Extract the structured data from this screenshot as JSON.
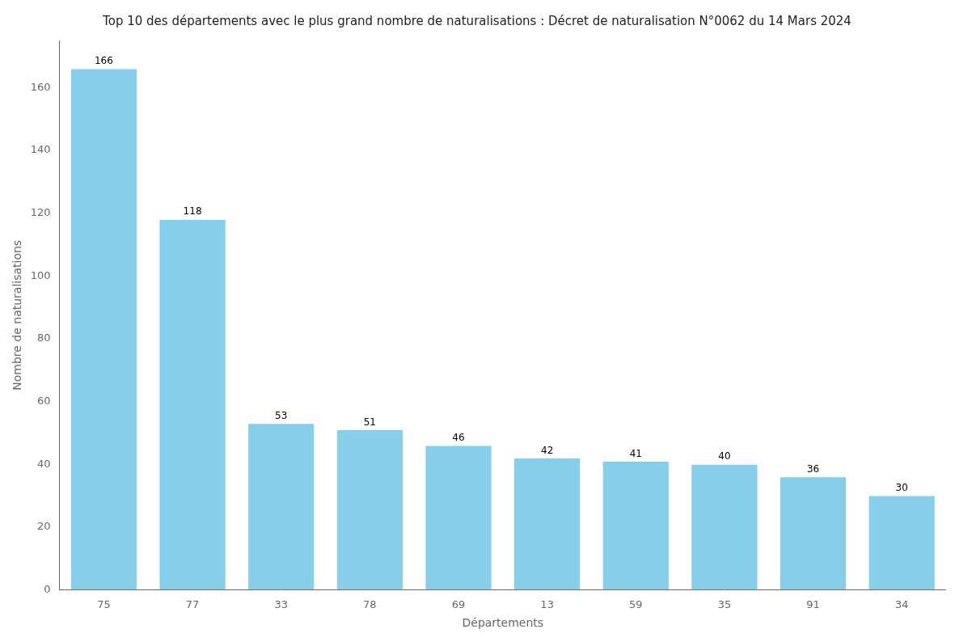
{
  "chart_data": {
    "type": "bar",
    "title": "Top 10 des départements avec le plus grand nombre de naturalisations : Décret de naturalisation N°0062 du 14 Mars 2024",
    "xlabel": "Départements",
    "ylabel": "Nombre de naturalisations",
    "categories": [
      "75",
      "77",
      "33",
      "78",
      "69",
      "13",
      "59",
      "35",
      "91",
      "34"
    ],
    "values": [
      166,
      118,
      53,
      51,
      46,
      42,
      41,
      40,
      36,
      30
    ],
    "color": "#87CEEB",
    "ylim": [
      0,
      175
    ],
    "yticks": [
      0,
      20,
      40,
      60,
      80,
      100,
      120,
      140,
      160
    ],
    "grid": false,
    "data_labels": true
  }
}
